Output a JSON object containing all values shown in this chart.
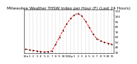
{
  "title": "Milwaukee Weather THSW Index per Hour (F) (Last 24 Hours)",
  "x_values": [
    0,
    1,
    2,
    3,
    4,
    5,
    6,
    7,
    8,
    9,
    10,
    11,
    12,
    13,
    14,
    15,
    16,
    17,
    18,
    19,
    20,
    21,
    22,
    23
  ],
  "y_values": [
    36,
    34,
    33,
    32,
    31,
    30,
    31,
    32,
    45,
    58,
    72,
    85,
    95,
    102,
    105,
    100,
    90,
    78,
    65,
    56,
    52,
    49,
    47,
    45
  ],
  "ylim": [
    28,
    112
  ],
  "yticks": [
    30,
    40,
    50,
    60,
    70,
    80,
    90,
    100,
    110
  ],
  "ytick_labels": [
    "30",
    "40",
    "50",
    "60",
    "70",
    "80",
    "90",
    "100",
    "110"
  ],
  "line_color": "#ff0000",
  "marker_color": "#000000",
  "marker": "o",
  "line_style": "--",
  "grid_color": "#888888",
  "bg_color": "#ffffff",
  "plot_bg_color": "#ffffff",
  "title_fontsize": 4.2,
  "tick_fontsize": 3.2,
  "x_tick_labels": [
    "12a",
    "1",
    "2",
    "3",
    "4",
    "5",
    "6",
    "7",
    "8",
    "9",
    "10",
    "11",
    "12p",
    "1",
    "2",
    "3",
    "4",
    "5",
    "6",
    "7",
    "8",
    "9",
    "10",
    "11"
  ]
}
